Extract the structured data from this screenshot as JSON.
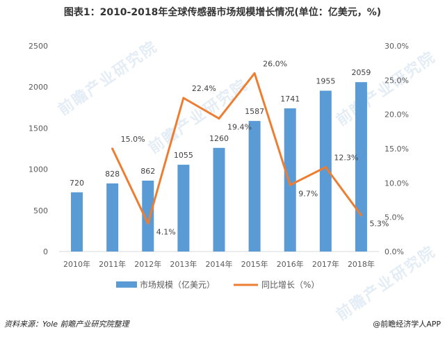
{
  "title": "图表1：2010-2018年全球传感器市场规模增长情况(单位：亿美元，%)",
  "source": "资料来源：Yole 前瞻产业研究院整理",
  "credit": "@前瞻经济学人APP",
  "watermark": "前瞻产业研究院",
  "colors": {
    "bar": "#5b9bd5",
    "line": "#ed7d31"
  },
  "chart_data": {
    "type": "bar",
    "categories": [
      "2010年",
      "2011年",
      "2012年",
      "2013年",
      "2014年",
      "2015年",
      "2016年",
      "2017年",
      "2018年"
    ],
    "series": [
      {
        "name": "市场规模（亿美元）",
        "type": "bar",
        "axis": "left",
        "values": [
          720,
          828,
          862,
          1055,
          1260,
          1587,
          1741,
          1955,
          2059
        ],
        "labels": [
          "720",
          "828",
          "862",
          "1055",
          "1260",
          "1587",
          "1741",
          "1955",
          "2059"
        ]
      },
      {
        "name": "同比增长（%）",
        "type": "line",
        "axis": "right",
        "values": [
          null,
          15.0,
          4.1,
          22.4,
          19.4,
          26.0,
          9.7,
          12.3,
          5.3
        ],
        "labels": [
          "",
          "15.0%",
          "4.1%",
          "22.4%",
          "19.4%",
          "26.0%",
          "9.7%",
          "12.3%",
          "5.3%"
        ]
      }
    ],
    "ylim": [
      0,
      2500
    ],
    "yticks": [
      "0",
      "500",
      "1000",
      "1500",
      "2000",
      "2500"
    ],
    "y2lim": [
      0,
      30
    ],
    "y2ticks": [
      "0.0%",
      "5.0%",
      "10.0%",
      "15.0%",
      "20.0%",
      "25.0%",
      "30.0%"
    ],
    "legend": "bottom",
    "grid": false
  }
}
